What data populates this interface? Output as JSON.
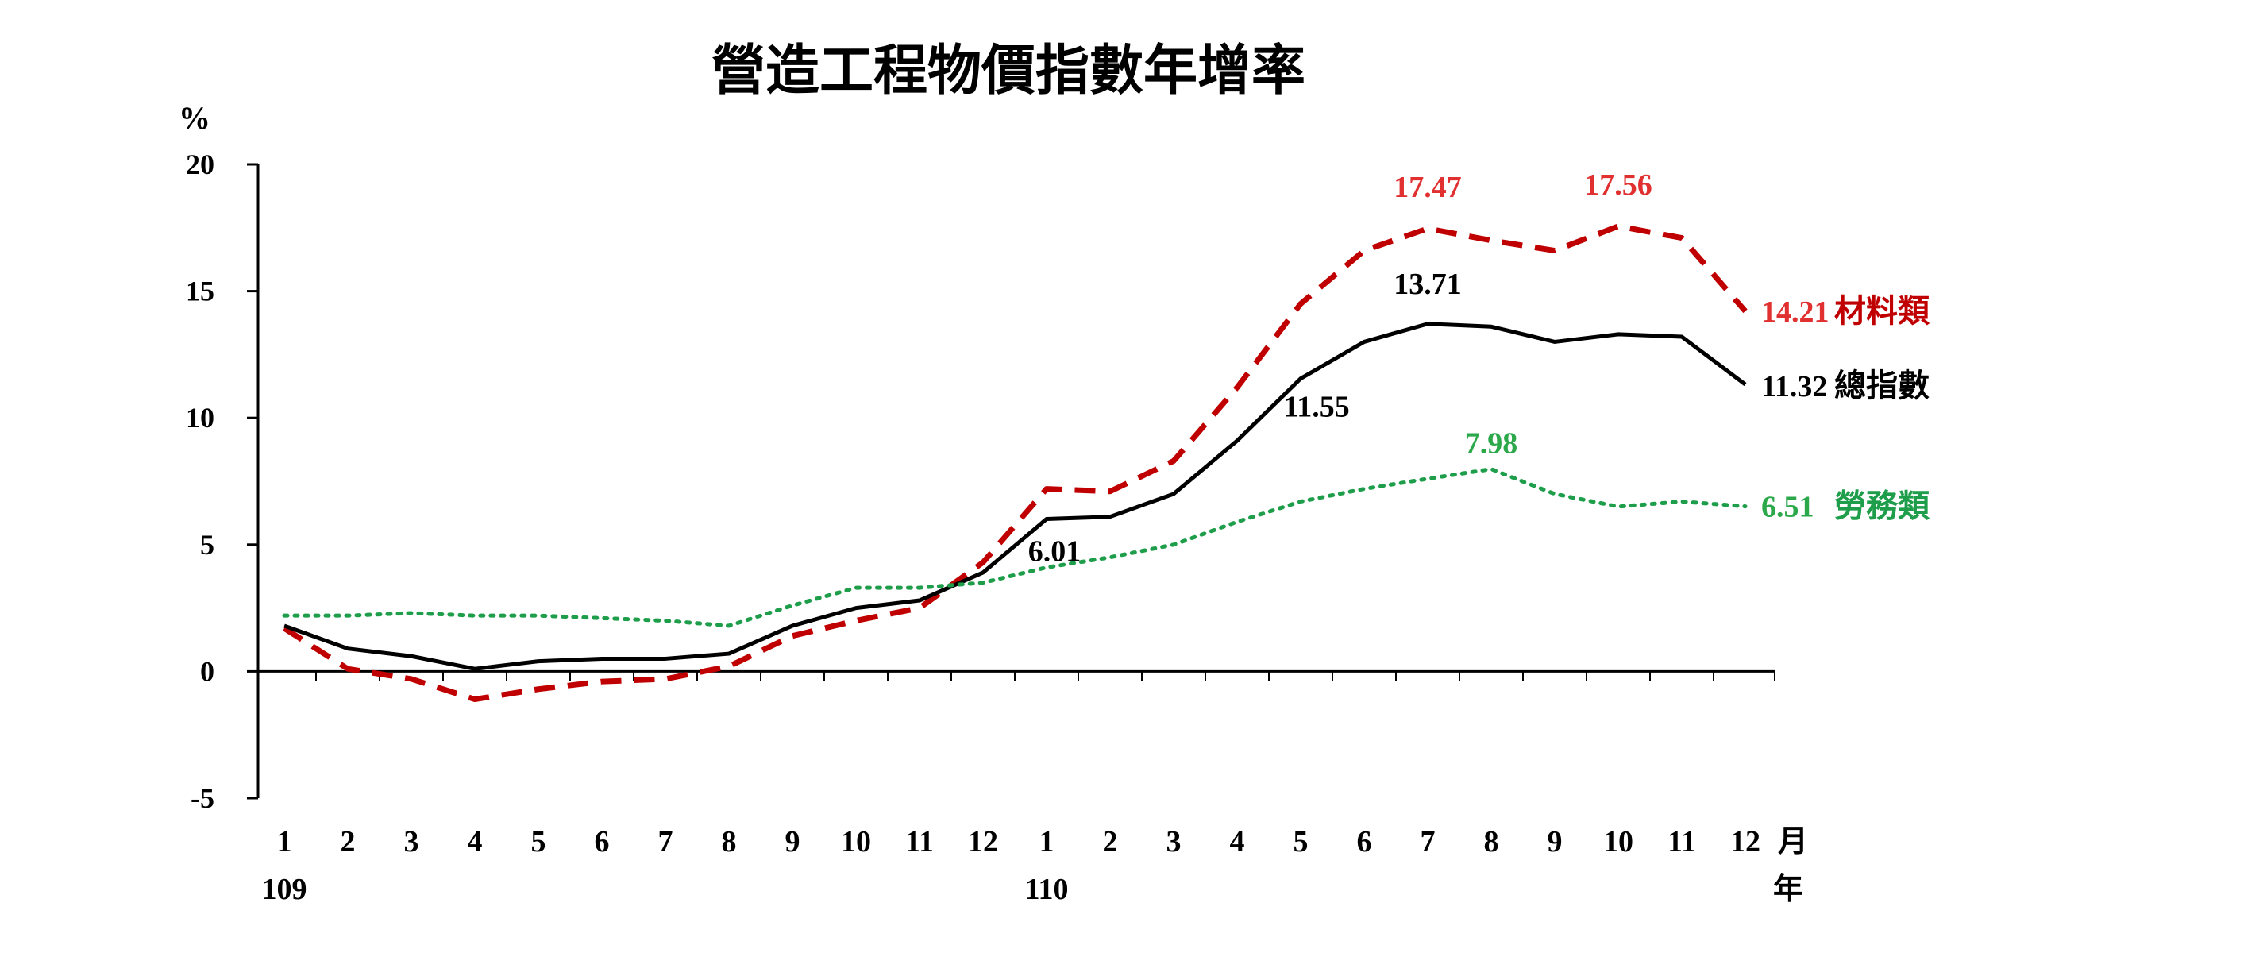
{
  "chart_data": {
    "type": "line",
    "title": "營造工程物價指數年增率",
    "y_unit": "%",
    "ylim": [
      -5,
      20
    ],
    "yticks": [
      "20",
      "15",
      "10",
      "5",
      "0",
      "-5"
    ],
    "x": [
      "1",
      "2",
      "3",
      "4",
      "5",
      "6",
      "7",
      "8",
      "9",
      "10",
      "11",
      "12",
      "1",
      "2",
      "3",
      "4",
      "5",
      "6",
      "7",
      "8",
      "9",
      "10",
      "11",
      "12"
    ],
    "x_year_labels": [
      {
        "index": 0,
        "label": "109"
      },
      {
        "index": 12,
        "label": "110"
      }
    ],
    "x_unit_month": "月",
    "x_unit_year": "年",
    "grid": false,
    "series": [
      {
        "name": "材料類",
        "color": "#c00000",
        "dash": "dashed",
        "values": [
          1.7,
          0.1,
          -0.3,
          -1.1,
          -0.7,
          -0.4,
          -0.3,
          0.2,
          1.4,
          2.0,
          2.5,
          4.3,
          7.2,
          7.1,
          8.3,
          11.2,
          14.5,
          16.6,
          17.47,
          17.0,
          16.6,
          17.56,
          17.1,
          14.21
        ],
        "labels": [
          {
            "index": 18,
            "text": "17.47",
            "color": "#e03030"
          },
          {
            "index": 21,
            "text": "17.56",
            "color": "#e03030"
          },
          {
            "index": 23,
            "text": "14.21",
            "color": "#e03030"
          }
        ]
      },
      {
        "name": "總指數",
        "color": "#000000",
        "dash": "solid",
        "values": [
          1.8,
          0.9,
          0.6,
          0.1,
          0.4,
          0.5,
          0.5,
          0.7,
          1.8,
          2.5,
          2.8,
          3.9,
          6.01,
          6.1,
          7.0,
          9.1,
          11.55,
          13.0,
          13.71,
          13.6,
          13.0,
          13.3,
          13.2,
          11.32
        ],
        "labels": [
          {
            "index": 12,
            "text": "6.01",
            "color": "#000000"
          },
          {
            "index": 16,
            "text": "11.55",
            "color": "#000000"
          },
          {
            "index": 18,
            "text": "13.71",
            "color": "#000000"
          },
          {
            "index": 23,
            "text": "11.32",
            "color": "#000000"
          }
        ]
      },
      {
        "name": "勞務類",
        "color": "#1e9e4a",
        "dash": "dotted",
        "values": [
          2.2,
          2.2,
          2.3,
          2.2,
          2.2,
          2.1,
          2.0,
          1.8,
          2.6,
          3.3,
          3.3,
          3.5,
          4.1,
          4.5,
          5.0,
          5.9,
          6.7,
          7.2,
          7.6,
          7.98,
          7.0,
          6.5,
          6.7,
          6.51
        ],
        "labels": [
          {
            "index": 19,
            "text": "7.98",
            "color": "#2aa84a"
          },
          {
            "index": 23,
            "text": "6.51",
            "color": "#2aa84a"
          }
        ]
      }
    ]
  }
}
